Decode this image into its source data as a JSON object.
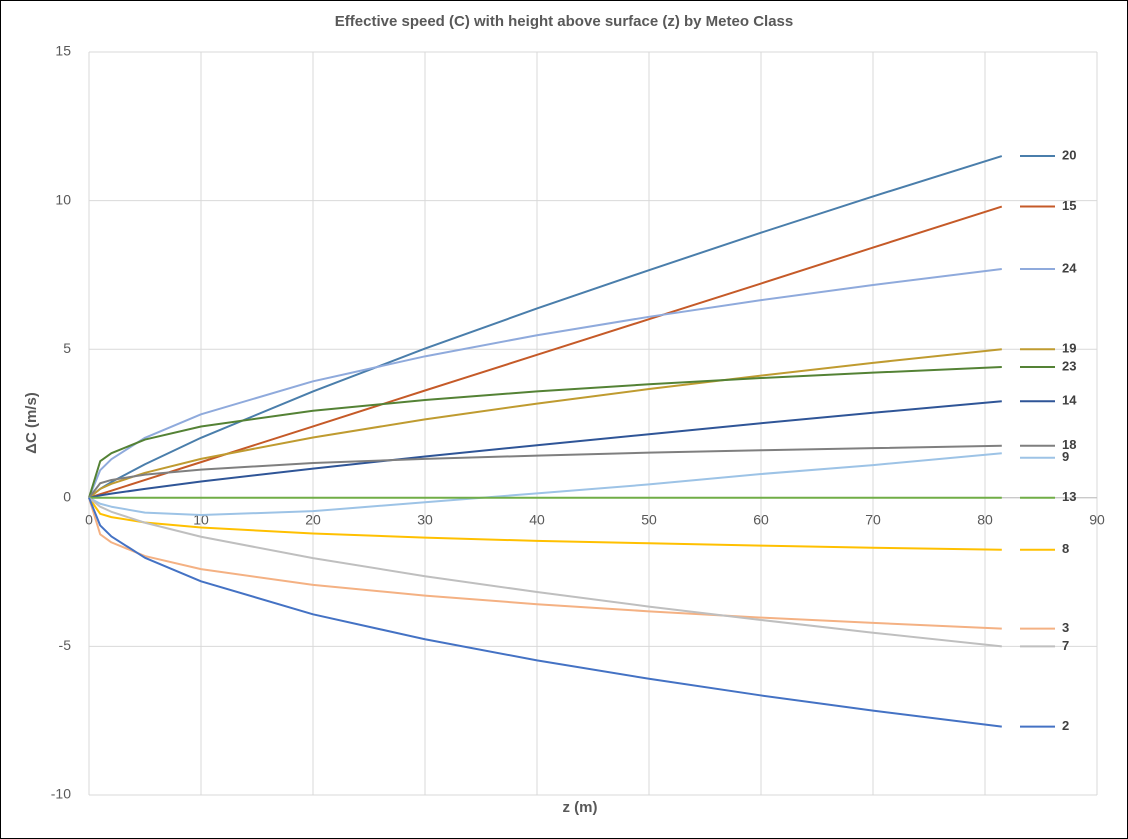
{
  "chart_data": {
    "type": "line",
    "title": "Effective speed (C) with height above surface (z) by Meteo Class",
    "xlabel": "z (m)",
    "ylabel": "ΔC (m/s)",
    "x": [
      0,
      1,
      2,
      5,
      10,
      20,
      30,
      40,
      50,
      60,
      70,
      81.5
    ],
    "xlim": [
      0,
      90
    ],
    "xticks": [
      0,
      10,
      20,
      30,
      40,
      50,
      60,
      70,
      80,
      90
    ],
    "ylim": [
      -10,
      15
    ],
    "yticks": [
      -10,
      -5,
      0,
      5,
      10,
      15
    ],
    "grid": true,
    "legend": "right",
    "series": [
      {
        "name": "20",
        "color": "#4a7eab",
        "values": [
          0,
          0.3,
          0.53,
          1.13,
          2.02,
          3.58,
          5.02,
          6.37,
          7.66,
          8.92,
          10.14,
          11.5
        ]
      },
      {
        "name": "15",
        "color": "#c55a28",
        "values": [
          0,
          0.12,
          0.24,
          0.6,
          1.2,
          2.4,
          3.61,
          4.81,
          6.01,
          7.21,
          8.42,
          9.8
        ]
      },
      {
        "name": "24",
        "color": "#8faadc",
        "values": [
          0,
          0.93,
          1.3,
          2.02,
          2.81,
          3.92,
          4.76,
          5.47,
          6.09,
          6.65,
          7.16,
          7.7
        ]
      },
      {
        "name": "19",
        "color": "#bf9b30",
        "values": [
          0,
          0.3,
          0.47,
          0.84,
          1.31,
          2.03,
          2.64,
          3.17,
          3.66,
          4.11,
          4.54,
          5.0
        ]
      },
      {
        "name": "23",
        "color": "#548235",
        "values": [
          0,
          1.23,
          1.5,
          1.96,
          2.4,
          2.93,
          3.29,
          3.58,
          3.82,
          4.03,
          4.21,
          4.4
        ]
      },
      {
        "name": "14",
        "color": "#2f5597",
        "values": [
          0,
          0.08,
          0.14,
          0.3,
          0.55,
          0.98,
          1.39,
          1.77,
          2.14,
          2.51,
          2.86,
          3.25
        ]
      },
      {
        "name": "18",
        "color": "#7f7f7f",
        "values": [
          0,
          0.49,
          0.6,
          0.78,
          0.95,
          1.17,
          1.31,
          1.42,
          1.52,
          1.6,
          1.67,
          1.75
        ]
      },
      {
        "name": "9",
        "color": "#9dc3e6",
        "values": [
          0,
          -0.2,
          -0.3,
          -0.5,
          -0.58,
          -0.45,
          -0.15,
          0.15,
          0.45,
          0.8,
          1.1,
          1.5
        ]
      },
      {
        "name": "13",
        "color": "#70ad47",
        "values": [
          0,
          0,
          0,
          0,
          0,
          0,
          0,
          0,
          0,
          0,
          0,
          0
        ]
      },
      {
        "name": "8",
        "color": "#ffc000",
        "values": [
          0,
          -0.54,
          -0.65,
          -0.83,
          -1.0,
          -1.2,
          -1.34,
          -1.45,
          -1.53,
          -1.61,
          -1.68,
          -1.75
        ]
      },
      {
        "name": "3",
        "color": "#f4b183",
        "values": [
          0,
          -1.23,
          -1.5,
          -1.96,
          -2.4,
          -2.93,
          -3.29,
          -3.58,
          -3.82,
          -4.03,
          -4.21,
          -4.4
        ]
      },
      {
        "name": "7",
        "color": "#bfbfbf",
        "values": [
          0,
          -0.3,
          -0.47,
          -0.84,
          -1.31,
          -2.03,
          -2.64,
          -3.17,
          -3.66,
          -4.11,
          -4.54,
          -5.0
        ]
      },
      {
        "name": "2",
        "color": "#4472c4",
        "values": [
          0,
          -0.93,
          -1.3,
          -2.02,
          -2.81,
          -3.92,
          -4.76,
          -5.47,
          -6.09,
          -6.65,
          -7.16,
          -7.7
        ]
      }
    ]
  }
}
